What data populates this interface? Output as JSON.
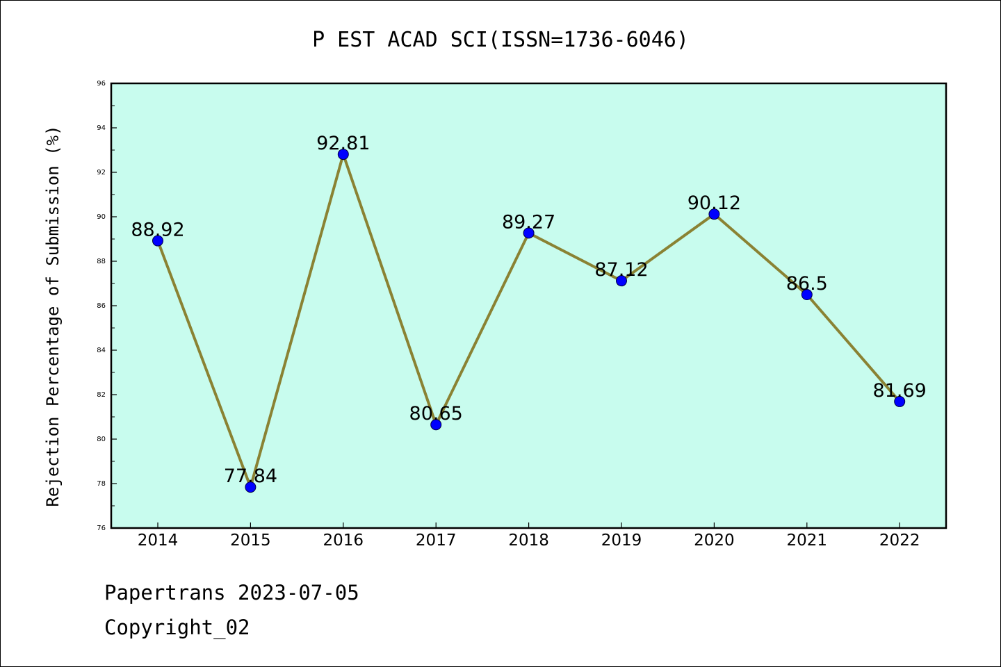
{
  "chart_data": {
    "type": "line",
    "title": "P EST ACAD SCI(ISSN=1736-6046)",
    "xlabel": "",
    "ylabel": "Rejection Percentage of Submission (%)",
    "categories": [
      "2014",
      "2015",
      "2016",
      "2017",
      "2018",
      "2019",
      "2020",
      "2021",
      "2022"
    ],
    "series": [
      {
        "values": [
          88.92,
          77.84,
          92.81,
          80.65,
          89.27,
          87.12,
          90.12,
          86.5,
          81.69
        ],
        "labels": [
          "88.92",
          "77.84",
          "92.81",
          "80.65",
          "89.27",
          "87.12",
          "90.12",
          "86.5",
          "81.69"
        ]
      }
    ],
    "ylim": [
      76,
      96
    ],
    "yticks": [
      76,
      78,
      80,
      82,
      84,
      86,
      88,
      90,
      92,
      94,
      96
    ],
    "grid": false,
    "colors": {
      "plot_background": "#c8fcee",
      "line": "#8a8233",
      "marker": "#0000ff",
      "axis": "#000000"
    }
  },
  "footer": {
    "line1": "Papertrans 2023-07-05",
    "line2": "Copyright_02"
  }
}
